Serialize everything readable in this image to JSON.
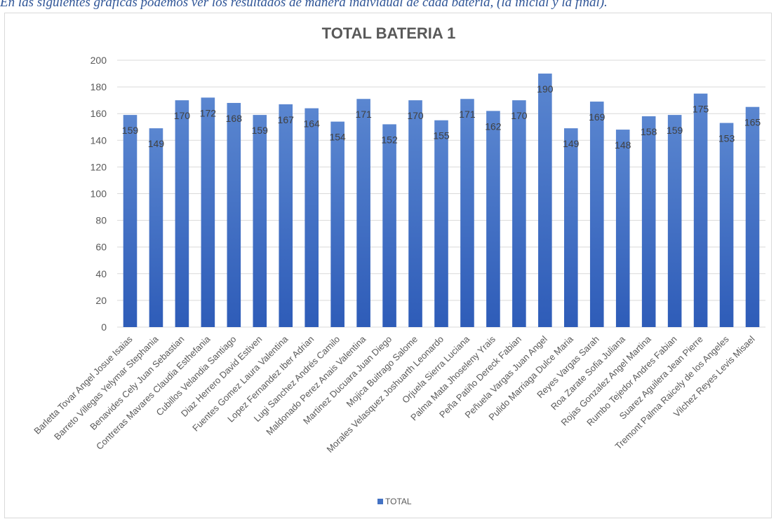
{
  "caption": "En las siguientes gráficas podemos ver los resultados de manera individual de cada batería, (la inicial y la final).",
  "chart_data": {
    "type": "bar",
    "title": "TOTAL BATERIA 1",
    "xlabel": "",
    "ylabel": "",
    "ylim": [
      0,
      200
    ],
    "yticks": [
      0,
      20,
      40,
      60,
      80,
      100,
      120,
      140,
      160,
      180,
      200
    ],
    "grid": true,
    "legend_position": "bottom",
    "bar_color": "#4472c4",
    "categories": [
      "Barletta Tovar Angel Josue Isaias",
      "Barreto Villegas Yelymar Stephania",
      "Benavides Cely Juan Sebastian",
      "Contreras Mavares Claudia Esthefania",
      "Cubillos Velandia Santiago",
      "Diaz Herrero David Estiven",
      "Fuentes Gomez Laura Valentina",
      "Lopez Fernandez Iber Adrian",
      "Lugi Sanchez Andrés Camilo",
      "Maldonado Perez Anais Valentina",
      "Martinez Ducuara Juan Diego",
      "Mojica Buitrago Salome",
      "Morales Velasquez Joshuarth Leonardo",
      "Orjuela Sierra Luciana",
      "Palma Mata Jhoseleny Yrais",
      "Peña Patiño Dereck Fabian",
      "Peñuela Vargas Juan Angel",
      "Pulido Marriaga Dulce Maria",
      "Reyes Vargas Sarah",
      "Roa Zarate Sofia Juliana",
      "Rojas Gonzalez Angel Martina",
      "Rumbo Tejedor Andres Fabian",
      "Suarez Aguilera Jean Pierre",
      "Tremont Palma Raicely de los Angeles",
      "Vilchez Reyes Levis Misael"
    ],
    "series": [
      {
        "name": "TOTAL",
        "values": [
          159,
          149,
          170,
          172,
          168,
          159,
          167,
          164,
          154,
          171,
          152,
          170,
          155,
          171,
          162,
          170,
          190,
          149,
          169,
          148,
          158,
          159,
          175,
          153,
          165
        ]
      }
    ]
  }
}
